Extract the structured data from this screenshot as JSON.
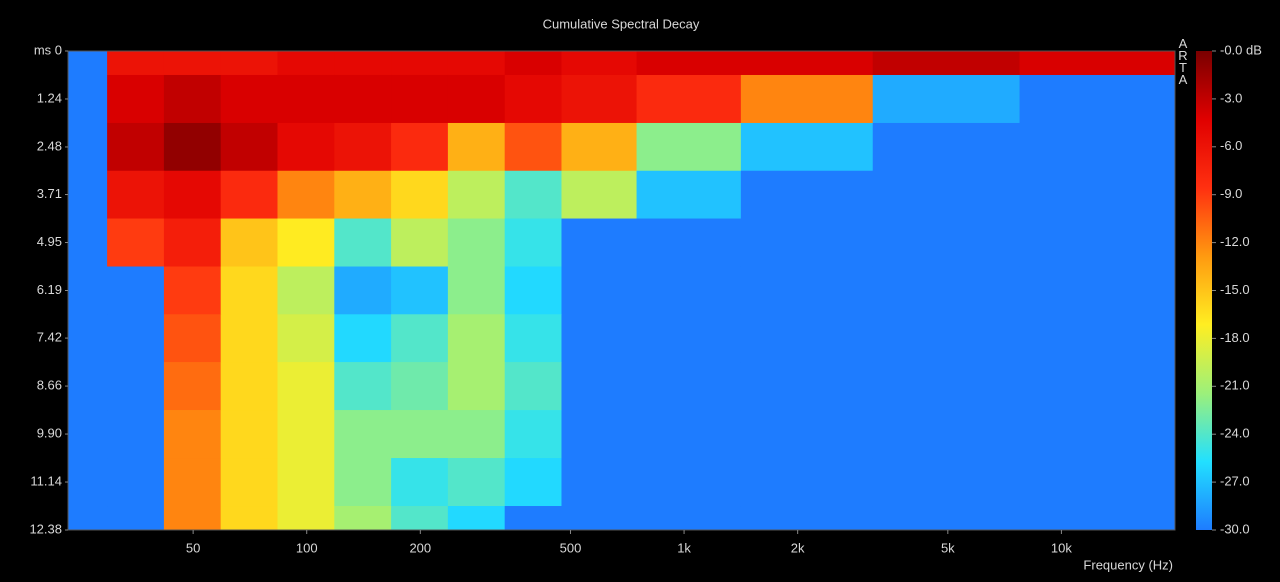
{
  "chart_data": {
    "type": "heatmap",
    "title": "Cumulative Spectral Decay",
    "x_label": "Frequency (Hz)",
    "watermark": "ARTA",
    "log_x": true,
    "y_inverted": true,
    "xlim": [
      23.3,
      20000
    ],
    "xticks": [
      50,
      100,
      200,
      500,
      {
        "value": 1000,
        "label": "1k"
      },
      {
        "value": 2000,
        "label": "2k"
      },
      {
        "value": 5000,
        "label": "5k"
      },
      {
        "value": 10000,
        "label": "10k"
      }
    ],
    "ylim": [
      0,
      12.38
    ],
    "yticks": [
      {
        "value": 0,
        "label": "ms 0"
      },
      1.24,
      2.48,
      3.71,
      4.95,
      6.19,
      7.42,
      8.66,
      {
        "value": 9.9,
        "label": "9.90"
      },
      11.14,
      12.38
    ],
    "clim": [
      -30,
      0
    ],
    "cticks": [
      {
        "value": 0,
        "label": "-0.0 dB"
      },
      {
        "value": -3,
        "label": "-3.0"
      },
      {
        "value": -6,
        "label": "-6.0"
      },
      {
        "value": -9,
        "label": "-9.0"
      },
      {
        "value": -12,
        "label": "-12.0"
      },
      {
        "value": -15,
        "label": "-15.0"
      },
      {
        "value": -18,
        "label": "-18.0"
      },
      {
        "value": -21,
        "label": "-21.0"
      },
      {
        "value": -24,
        "label": "-24.0"
      },
      {
        "value": -27,
        "label": "-27.0"
      },
      {
        "value": -30,
        "label": "-30.0"
      }
    ],
    "colormap": [
      "#1e7cff",
      "#22e0ff",
      "#9cf07a",
      "#ffee22",
      "#ff9a10",
      "#ff3010",
      "#e00000",
      "#7a0000"
    ],
    "x": [
      25,
      35,
      50,
      70,
      100,
      140,
      200,
      280,
      400,
      560,
      1000,
      2000,
      5000,
      12000
    ],
    "y": [
      0,
      1.24,
      2.48,
      3.71,
      4.95,
      6.19,
      7.42,
      8.66,
      9.9,
      11.14,
      12.38
    ],
    "z": [
      [
        -30,
        -6,
        -6,
        -6,
        -5,
        -5,
        -5,
        -5,
        -4,
        -5,
        -4,
        -4,
        -3,
        -4
      ],
      [
        -30,
        -4,
        -3,
        -4,
        -4,
        -4,
        -4,
        -4,
        -5,
        -6,
        -8,
        -12,
        -28,
        -30
      ],
      [
        -30,
        -3,
        -1,
        -3,
        -5,
        -6,
        -8,
        -14,
        -10,
        -14,
        -22,
        -27,
        -30,
        -30
      ],
      [
        -30,
        -6,
        -5,
        -8,
        -12,
        -14,
        -16,
        -20,
        -24,
        -20,
        -27,
        -30,
        -30,
        -30
      ],
      [
        -30,
        -9,
        -7,
        -15,
        -17,
        -24,
        -20,
        -22,
        -25,
        -30,
        -30,
        -30,
        -30,
        -30
      ],
      [
        -30,
        -30,
        -9,
        -16,
        -20,
        -28,
        -27,
        -22,
        -26,
        -30,
        -30,
        -30,
        -30,
        -30
      ],
      [
        -30,
        -30,
        -10,
        -16,
        -19,
        -26,
        -24,
        -21,
        -25,
        -30,
        -30,
        -30,
        -30,
        -30
      ],
      [
        -30,
        -30,
        -11,
        -16,
        -18,
        -24,
        -23,
        -21,
        -24,
        -30,
        -30,
        -30,
        -30,
        -30
      ],
      [
        -30,
        -30,
        -12,
        -16,
        -18,
        -22,
        -22,
        -22,
        -25,
        -30,
        -30,
        -30,
        -30,
        -30
      ],
      [
        -30,
        -30,
        -12,
        -16,
        -18,
        -22,
        -25,
        -24,
        -26,
        -30,
        -30,
        -30,
        -30,
        -30
      ],
      [
        -30,
        -30,
        -12,
        -16,
        -18,
        -21,
        -24,
        -26,
        -30,
        -30,
        -30,
        -30,
        -30,
        -30
      ]
    ]
  }
}
